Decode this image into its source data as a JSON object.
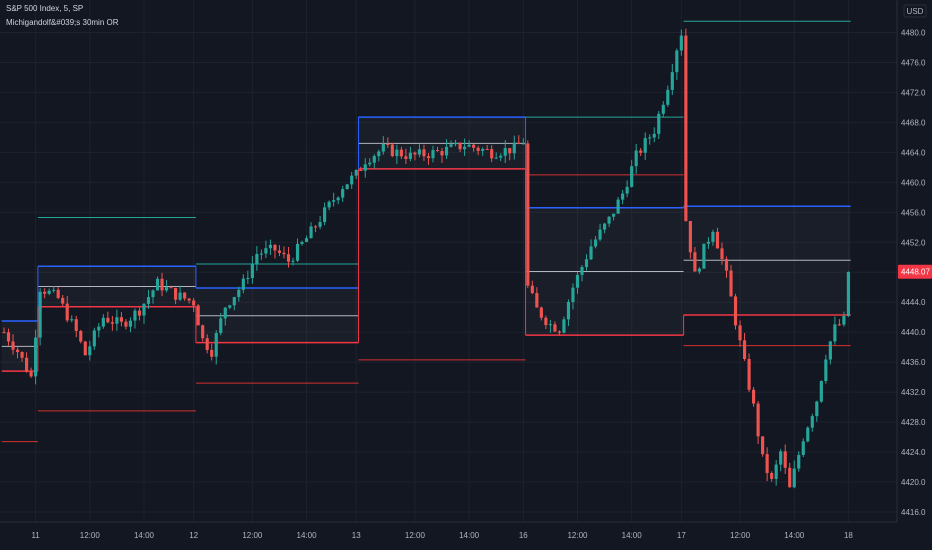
{
  "header": {
    "symbol_title": "S&P 500 Index, 5, SP",
    "indicator_label": "Michigandolf&#039;s 30min OR"
  },
  "currency_label": "USD",
  "colors": {
    "background": "#131722",
    "grid": "#1e222d",
    "axis_border": "#2a2e39",
    "axis_text": "#b2b5be",
    "candle_up": "#26a69a",
    "candle_down": "#ef5350",
    "or_high": "#2962ff",
    "or_low": "#f23645",
    "or_mid": "#b2b5be",
    "target_up": "#26a69a",
    "target_down": "#d32f2f",
    "last_price_badge": "#f23645"
  },
  "chart_data": {
    "type": "candlestick",
    "symbol": "S&P 500 Index",
    "interval": "5",
    "exchange": "SP",
    "price_axis": {
      "unit": "USD",
      "range": [
        4416,
        4483
      ],
      "ticks": [
        4480,
        4476,
        4472,
        4468,
        4464,
        4460,
        4456,
        4452,
        4448,
        4444,
        4440,
        4436,
        4432,
        4428,
        4424,
        4420,
        4416
      ]
    },
    "time_axis": {
      "ticks": [
        {
          "label": "11",
          "bar": 7
        },
        {
          "label": "12:00",
          "bar": 19
        },
        {
          "label": "14:00",
          "bar": 31
        },
        {
          "label": "12",
          "bar": 42
        },
        {
          "label": "12:00",
          "bar": 55
        },
        {
          "label": "14:00",
          "bar": 67
        },
        {
          "label": "13",
          "bar": 78
        },
        {
          "label": "12:00",
          "bar": 91
        },
        {
          "label": "14:00",
          "bar": 103
        },
        {
          "label": "16",
          "bar": 115
        },
        {
          "label": "12:00",
          "bar": 127
        },
        {
          "label": "14:00",
          "bar": 139
        },
        {
          "label": "17",
          "bar": 150
        },
        {
          "label": "12:00",
          "bar": 163
        },
        {
          "label": "14:00",
          "bar": 175
        },
        {
          "label": "18",
          "bar": 187
        }
      ]
    },
    "last_price": 4448.07,
    "total_bars": 192,
    "sessions": [
      {
        "start": 0,
        "end": 7,
        "or_high": 4441.5,
        "or_low": 4434.8,
        "mid": 4438.1,
        "up_target": 4441.5,
        "down_target": 4425.4
      },
      {
        "start": 8,
        "end": 42,
        "or_high": 4448.8,
        "or_low": 4443.4,
        "mid": 4446.1,
        "up_target": 4455.3,
        "down_target": 4429.5
      },
      {
        "start": 43,
        "end": 78,
        "or_high": 4445.9,
        "or_low": 4438.6,
        "mid": 4442.2,
        "up_target": 4449.1,
        "down_target": 4433.2
      },
      {
        "start": 79,
        "end": 115,
        "or_high": 4468.7,
        "or_low": 4461.8,
        "mid": 4465.2,
        "up_target": 4461.8,
        "down_target": 4436.3
      },
      {
        "start": 116,
        "end": 150,
        "or_high": 4456.6,
        "or_low": 4439.6,
        "mid": 4448.1,
        "up_target": 4468.7,
        "down_target": 4461.0
      },
      {
        "start": 151,
        "end": 187,
        "or_high": 4456.8,
        "or_low": 4442.3,
        "mid": 4449.6,
        "up_target": 4481.5,
        "down_target": 4438.2
      }
    ],
    "close_path": [
      [
        0,
        4440.0
      ],
      [
        3,
        4437.5
      ],
      [
        6,
        4434.0
      ],
      [
        8,
        4446.0
      ],
      [
        12,
        4444.5
      ],
      [
        16,
        4440.0
      ],
      [
        18,
        4437.0
      ],
      [
        22,
        4442.0
      ],
      [
        26,
        4441.0
      ],
      [
        30,
        4443.0
      ],
      [
        34,
        4446.5
      ],
      [
        38,
        4445.0
      ],
      [
        42,
        4444.0
      ],
      [
        44,
        4439.0
      ],
      [
        46,
        4437.5
      ],
      [
        49,
        4443.5
      ],
      [
        53,
        4446.5
      ],
      [
        56,
        4450.5
      ],
      [
        60,
        4451.0
      ],
      [
        63,
        4449.5
      ],
      [
        67,
        4452.5
      ],
      [
        71,
        4456.0
      ],
      [
        75,
        4459.5
      ],
      [
        78,
        4461.0
      ],
      [
        80,
        4463.0
      ],
      [
        84,
        4464.5
      ],
      [
        90,
        4463.5
      ],
      [
        96,
        4464.0
      ],
      [
        102,
        4465.0
      ],
      [
        108,
        4464.0
      ],
      [
        113,
        4464.5
      ],
      [
        115,
        4465.5
      ],
      [
        116,
        4446.0
      ],
      [
        118,
        4443.0
      ],
      [
        121,
        4441.0
      ],
      [
        123,
        4440.5
      ],
      [
        126,
        4446.0
      ],
      [
        130,
        4451.5
      ],
      [
        134,
        4455.0
      ],
      [
        137,
        4458.5
      ],
      [
        140,
        4463.5
      ],
      [
        144,
        4467.0
      ],
      [
        147,
        4473.0
      ],
      [
        149,
        4478.0
      ],
      [
        150,
        4480.0
      ],
      [
        151,
        4455.0
      ],
      [
        153,
        4447.5
      ],
      [
        155,
        4451.0
      ],
      [
        157,
        4454.0
      ],
      [
        160,
        4447.5
      ],
      [
        163,
        4438.5
      ],
      [
        166,
        4430.0
      ],
      [
        168,
        4423.0
      ],
      [
        170,
        4420.0
      ],
      [
        172,
        4424.0
      ],
      [
        174,
        4419.0
      ],
      [
        177,
        4426.0
      ],
      [
        180,
        4431.0
      ],
      [
        182,
        4437.0
      ],
      [
        184,
        4440.5
      ],
      [
        186,
        4441.5
      ],
      [
        187,
        4448.07
      ]
    ]
  }
}
